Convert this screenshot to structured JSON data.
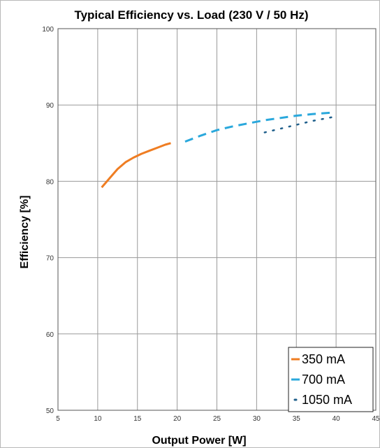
{
  "chart_data": {
    "type": "line",
    "title": "Typical Efficiency vs. Load (230 V / 50 Hz)",
    "xlabel": "Output Power [W]",
    "ylabel": "Efficiency [%]",
    "xlim": [
      5,
      45
    ],
    "ylim": [
      50,
      100
    ],
    "xticks": [
      5,
      10,
      15,
      20,
      25,
      30,
      35,
      40,
      45
    ],
    "yticks": [
      50,
      60,
      70,
      80,
      90,
      100
    ],
    "grid": true,
    "legend_position": "bottom-right",
    "series": [
      {
        "name": "350 mA",
        "color": "#ef7d22",
        "style": "solid",
        "x": [
          10.5,
          11.5,
          12.5,
          13.5,
          14.5,
          15.5,
          16.5,
          17.5,
          18.5,
          19.2
        ],
        "y": [
          79.2,
          80.4,
          81.6,
          82.5,
          83.1,
          83.6,
          84.0,
          84.4,
          84.8,
          85.0
        ]
      },
      {
        "name": "700 mA",
        "color": "#2aa8dc",
        "style": "dashed",
        "x": [
          21,
          23,
          25,
          27,
          29,
          31,
          33,
          35,
          37,
          39.5
        ],
        "y": [
          85.2,
          86.0,
          86.7,
          87.2,
          87.6,
          88.0,
          88.3,
          88.6,
          88.8,
          89.0
        ]
      },
      {
        "name": "1050 mA",
        "color": "#1f5f8b",
        "style": "dotted",
        "x": [
          31,
          33,
          35,
          37,
          39.5
        ],
        "y": [
          86.4,
          86.9,
          87.4,
          87.9,
          88.4
        ]
      }
    ]
  }
}
